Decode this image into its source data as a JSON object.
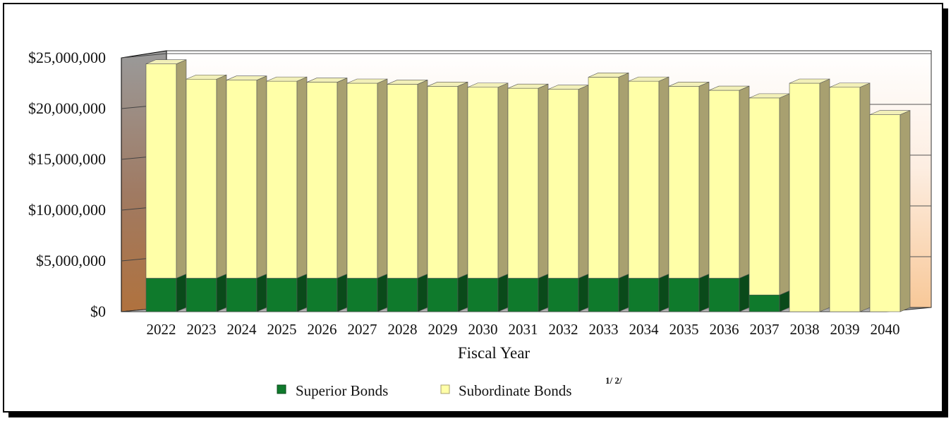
{
  "chart_data": {
    "type": "bar",
    "stacked": true,
    "three_d": true,
    "categories": [
      "2022",
      "2023",
      "2024",
      "2025",
      "2026",
      "2027",
      "2028",
      "2029",
      "2030",
      "2031",
      "2032",
      "2033",
      "2034",
      "2035",
      "2036",
      "2037",
      "2038",
      "2039",
      "2040"
    ],
    "series": [
      {
        "name": "Superior Bonds",
        "color": "#0f7a2c",
        "values": [
          3300000,
          3300000,
          3300000,
          3300000,
          3300000,
          3300000,
          3300000,
          3300000,
          3300000,
          3300000,
          3300000,
          3300000,
          3300000,
          3300000,
          3300000,
          1650000,
          0,
          0,
          0
        ]
      },
      {
        "name": "Subordinate Bonds",
        "color": "#ffffa8",
        "values": [
          21100000,
          19600000,
          19500000,
          19400000,
          19300000,
          19200000,
          19100000,
          18900000,
          18800000,
          18700000,
          18600000,
          19800000,
          19400000,
          18900000,
          18500000,
          19400000,
          22500000,
          22100000,
          19400000
        ]
      }
    ],
    "legend": {
      "position": "bottom",
      "items": [
        "Superior Bonds",
        "Subordinate Bonds"
      ],
      "superscript": "1/ 2/"
    },
    "xlabel": "Fiscal Year",
    "ylabel": "",
    "ylim": [
      0,
      25000000
    ],
    "yticks": [
      0,
      5000000,
      10000000,
      15000000,
      20000000,
      25000000
    ],
    "ytick_labels": [
      "$0",
      "$5,000,000",
      "$10,000,000",
      "$15,000,000",
      "$20,000,000",
      "$25,000,000"
    ],
    "grid": true
  }
}
